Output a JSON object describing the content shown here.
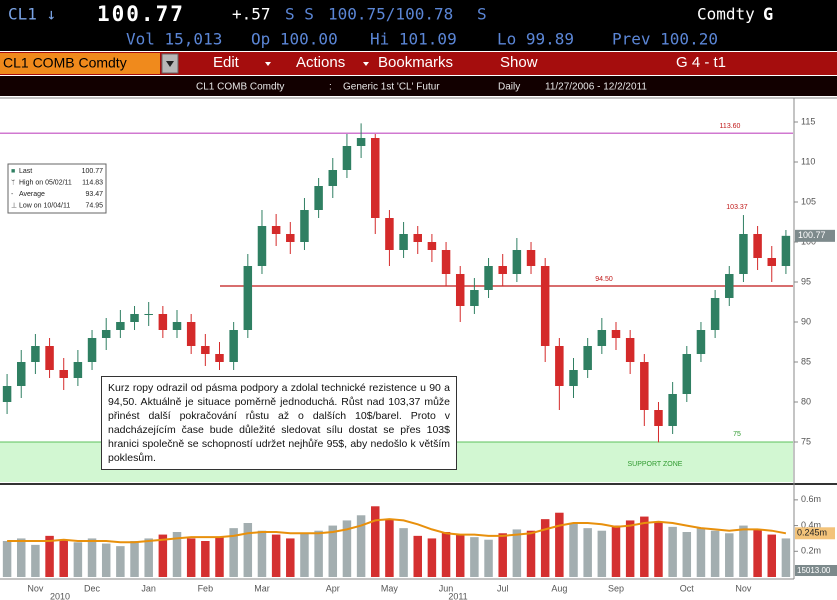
{
  "header": {
    "ticker": "CL1 ↓",
    "price": "100.77",
    "change": "+.57",
    "flags": "S S",
    "bid_ask": "100.75/100.78",
    "flag2": "S",
    "market": "Comdty",
    "key": "G",
    "vol": "Vol 15,013",
    "open": "Op 100.00",
    "high": "Hi 101.09",
    "low": "Lo 99.89",
    "prev": "Prev 100.20"
  },
  "toolbar": {
    "security": "CL1 COMB Comdty",
    "menus": [
      "Edit",
      "Actions",
      "Bookmarks",
      "Show"
    ],
    "page": "G 4 - t1"
  },
  "info_bar": {
    "security": "CL1 COMB Comdty",
    "separator": ":",
    "description": "Generic 1st 'CL' Futur",
    "period": "Daily",
    "range": "11/27/2006 - 12/2/2011"
  },
  "legend": [
    {
      "label": "Last",
      "value": "100.77"
    },
    {
      "label": "High on 05/02/11",
      "value": "114.83"
    },
    {
      "label": "Average",
      "value": "93.47"
    },
    {
      "label": "Low on 10/04/11",
      "value": "74.95"
    }
  ],
  "comment": "Kurz ropy odrazil od pásma podpory a zdolal technické rezistence u 90 a 94,50. Aktuálně je situace poměrně jednoduchá. Růst nad 103,37 může přinést další pokračování růstu až o dalších 10$/barel. Proto v nadcházejícím čase bude důležité sledovat sílu dostat se přes 103$ hranici společně se schopností udržet nejhůře 95$, aby nedošlo k větším poklesům.",
  "chart_data": {
    "type": "candlestick",
    "categories": [
      null,
      null,
      "Nov",
      null,
      null,
      null,
      "Dec",
      null,
      null,
      null,
      "Jan",
      null,
      null,
      null,
      "Feb",
      null,
      null,
      null,
      "Mar",
      null,
      null,
      null,
      null,
      "Apr",
      null,
      null,
      null,
      "May",
      null,
      null,
      null,
      "Jun",
      null,
      null,
      null,
      "Jul",
      null,
      null,
      null,
      "Aug",
      null,
      null,
      null,
      "Sep",
      null,
      null,
      null,
      null,
      "Oct",
      null,
      null,
      null,
      "Nov",
      null,
      null,
      null
    ],
    "open": [
      80,
      82,
      85,
      87,
      84,
      83,
      85,
      88,
      89,
      90,
      91,
      91,
      89,
      90,
      87,
      86,
      85,
      89,
      97,
      102,
      101,
      100,
      104,
      107,
      109,
      112,
      113,
      103,
      99,
      101,
      100,
      99,
      96,
      92,
      94,
      97,
      96,
      99,
      97,
      87,
      82,
      84,
      87,
      89,
      88,
      85,
      79,
      77,
      81,
      86,
      89,
      93,
      96,
      101,
      98,
      97
    ],
    "high": [
      83.5,
      86.5,
      88.5,
      88,
      85.5,
      86.5,
      89,
      90.5,
      91.5,
      92,
      92.5,
      92,
      91.5,
      91,
      88.5,
      87.5,
      90,
      98.5,
      104,
      103.5,
      102.5,
      105.5,
      108,
      110.5,
      113.5,
      114.83,
      113.5,
      104,
      102.5,
      102,
      101,
      100,
      97,
      95.5,
      98,
      98.5,
      100.5,
      100,
      98,
      88,
      85.5,
      88,
      90.5,
      90,
      89,
      86,
      80,
      82.5,
      87,
      90,
      94,
      97,
      103.37,
      102,
      99.5,
      101.5
    ],
    "low": [
      78.5,
      80.5,
      83.5,
      83,
      81.5,
      82,
      84,
      86.5,
      88,
      89,
      89.5,
      88,
      88,
      86,
      84.5,
      84,
      84,
      88,
      96,
      99.5,
      98.5,
      99,
      103,
      105.5,
      108,
      110.5,
      101,
      97,
      98,
      98.5,
      97.5,
      94.5,
      90,
      91,
      93,
      94.5,
      95,
      96,
      85,
      79,
      80.5,
      83,
      86,
      86.5,
      83.5,
      77,
      74.95,
      76,
      80,
      85,
      88,
      92,
      95,
      96.5,
      95,
      96
    ],
    "close": [
      82,
      85,
      87,
      84,
      83,
      85,
      88,
      89,
      90,
      91,
      91,
      89,
      90,
      87,
      86,
      85,
      89,
      97,
      102,
      101,
      100,
      104,
      107,
      109,
      112,
      113,
      103,
      99,
      101,
      100,
      99,
      96,
      92,
      94,
      97,
      96,
      99,
      97,
      87,
      82,
      84,
      87,
      89,
      88,
      85,
      79,
      77,
      81,
      86,
      89,
      93,
      96,
      101,
      98,
      97,
      100.77
    ],
    "up_color": "#2f7f62",
    "down_color": "#d42a2a",
    "ylim": [
      70,
      118
    ],
    "yticks": [
      75,
      80,
      85,
      90,
      95,
      100,
      105,
      110,
      115
    ],
    "hlines": [
      {
        "value": 113.6,
        "label": "113.60",
        "color": "#c04cc0"
      },
      {
        "value": 94.5,
        "label": "94.50",
        "color": "#c01818"
      }
    ],
    "annotations": [
      103.37,
      75
    ],
    "zone": {
      "from": 70,
      "to": 75,
      "label": "SUPPORT ZONE",
      "color": "#d2f7d2"
    },
    "year_labels": [
      "2010",
      "2011"
    ],
    "volume": {
      "values": [
        0.28,
        0.3,
        0.25,
        0.32,
        0.29,
        0.27,
        0.3,
        0.26,
        0.24,
        0.28,
        0.3,
        0.33,
        0.35,
        0.3,
        0.28,
        0.31,
        0.38,
        0.42,
        0.36,
        0.33,
        0.3,
        0.34,
        0.36,
        0.4,
        0.44,
        0.48,
        0.55,
        0.45,
        0.38,
        0.32,
        0.3,
        0.35,
        0.33,
        0.31,
        0.29,
        0.34,
        0.37,
        0.36,
        0.45,
        0.5,
        0.42,
        0.38,
        0.36,
        0.4,
        0.44,
        0.47,
        0.43,
        0.39,
        0.35,
        0.38,
        0.36,
        0.34,
        0.4,
        0.37,
        0.33,
        0.3
      ],
      "ma": [
        0.28,
        0.28,
        0.28,
        0.28,
        0.29,
        0.28,
        0.28,
        0.28,
        0.27,
        0.27,
        0.28,
        0.29,
        0.3,
        0.31,
        0.31,
        0.31,
        0.32,
        0.34,
        0.35,
        0.35,
        0.34,
        0.34,
        0.34,
        0.35,
        0.37,
        0.4,
        0.44,
        0.45,
        0.44,
        0.41,
        0.37,
        0.34,
        0.33,
        0.33,
        0.32,
        0.32,
        0.33,
        0.34,
        0.37,
        0.4,
        0.42,
        0.42,
        0.41,
        0.39,
        0.4,
        0.42,
        0.43,
        0.42,
        0.4,
        0.38,
        0.37,
        0.36,
        0.37,
        0.37,
        0.36,
        0.34
      ],
      "up_color": "#a3aeb0",
      "down_color": "#d43030",
      "ma_color": "#e8900c",
      "ylim": [
        0,
        0.7
      ],
      "yticks": [
        {
          "value": 0.2,
          "label": "0.2m"
        },
        {
          "value": 0.4,
          "label": "0.4m"
        },
        {
          "value": 0.6,
          "label": "0.6m"
        }
      ],
      "ma_label": "0.245m",
      "last_label": "15013.00"
    }
  }
}
